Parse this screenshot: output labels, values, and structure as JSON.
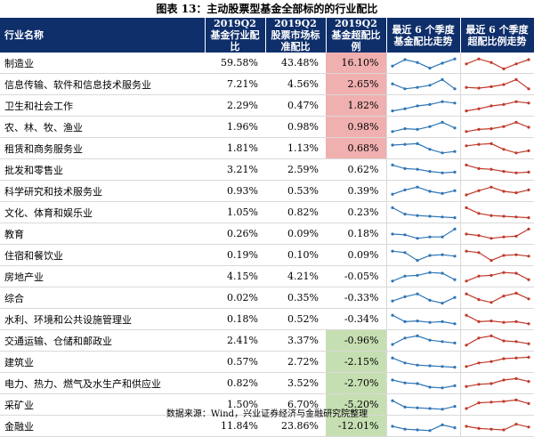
{
  "title": "图表 13：主动股票型基金全部标的的行业配比",
  "headers": {
    "industry": "行业名称",
    "fund": "2019Q2 基金行业配比",
    "market": "2019Q2 股票市场标准配比",
    "excess": "2019Q2 基金超配比例",
    "fund_trend": "最近 6 个季度基金配比走势",
    "excess_trend": "最近 6 个季度超配比例走势"
  },
  "colors": {
    "header_bg": "#0f2f6b",
    "positive_highlight": "#f0b0b0",
    "negative_highlight": "#c6dfb2",
    "fund_line": "#2e75b6",
    "excess_line": "#c0392b"
  },
  "rows": [
    {
      "name": "制造业",
      "fund": "59.58%",
      "market": "43.48%",
      "excess": "16.10%",
      "hl": "pos",
      "fund_trend": [
        0.3,
        0.75,
        0.55,
        0.15,
        0.5,
        0.8
      ],
      "excess_trend": [
        0.45,
        0.8,
        0.55,
        0.1,
        0.45,
        0.75
      ]
    },
    {
      "name": "信息传输、软件和信息技术服务业",
      "fund": "7.21%",
      "market": "4.56%",
      "excess": "2.65%",
      "hl": "pos",
      "fund_trend": [
        0.55,
        0.2,
        0.3,
        0.45,
        0.85,
        0.2
      ],
      "excess_trend": [
        0.3,
        0.25,
        0.35,
        0.5,
        0.85,
        0.2
      ]
    },
    {
      "name": "卫生和社会工作",
      "fund": "2.29%",
      "market": "0.47%",
      "excess": "1.82%",
      "hl": "pos",
      "fund_trend": [
        0.15,
        0.3,
        0.5,
        0.6,
        0.8,
        0.7
      ],
      "excess_trend": [
        0.15,
        0.3,
        0.5,
        0.6,
        0.8,
        0.7
      ]
    },
    {
      "name": "农、林、牧、渔业",
      "fund": "1.96%",
      "market": "0.98%",
      "excess": "0.98%",
      "hl": "pos",
      "fund_trend": [
        0.2,
        0.4,
        0.35,
        0.55,
        0.85,
        0.45
      ],
      "excess_trend": [
        0.2,
        0.35,
        0.4,
        0.55,
        0.85,
        0.5
      ]
    },
    {
      "name": "租赁和商务服务业",
      "fund": "1.81%",
      "market": "1.13%",
      "excess": "0.68%",
      "hl": "pos",
      "fund_trend": [
        0.75,
        0.8,
        0.85,
        0.45,
        0.2,
        0.3
      ],
      "excess_trend": [
        0.7,
        0.8,
        0.85,
        0.45,
        0.2,
        0.35
      ]
    },
    {
      "name": "批发和零售业",
      "fund": "3.21%",
      "market": "2.59%",
      "excess": "0.62%",
      "hl": "plain",
      "fund_trend": [
        0.85,
        0.6,
        0.55,
        0.4,
        0.3,
        0.35
      ],
      "excess_trend": [
        0.85,
        0.6,
        0.55,
        0.4,
        0.3,
        0.35
      ]
    },
    {
      "name": "科学研究和技术服务业",
      "fund": "0.93%",
      "market": "0.53%",
      "excess": "0.39%",
      "hl": "plain",
      "fund_trend": [
        0.3,
        0.6,
        0.8,
        0.5,
        0.35,
        0.55
      ],
      "excess_trend": [
        0.25,
        0.55,
        0.8,
        0.5,
        0.4,
        0.6
      ]
    },
    {
      "name": "文化、体育和娱乐业",
      "fund": "1.05%",
      "market": "0.82%",
      "excess": "0.23%",
      "hl": "plain",
      "fund_trend": [
        0.85,
        0.4,
        0.3,
        0.25,
        0.2,
        0.15
      ],
      "excess_trend": [
        0.85,
        0.45,
        0.3,
        0.25,
        0.2,
        0.15
      ]
    },
    {
      "name": "教育",
      "fund": "0.26%",
      "market": "0.09%",
      "excess": "0.18%",
      "hl": "plain",
      "fund_trend": [
        0.5,
        0.45,
        0.2,
        0.3,
        0.3,
        0.85
      ],
      "excess_trend": [
        0.5,
        0.4,
        0.2,
        0.3,
        0.35,
        0.85
      ]
    },
    {
      "name": "住宿和餐饮业",
      "fund": "0.19%",
      "market": "0.10%",
      "excess": "0.09%",
      "hl": "plain",
      "fund_trend": [
        0.8,
        0.7,
        0.15,
        0.5,
        0.55,
        0.45
      ],
      "excess_trend": [
        0.8,
        0.7,
        0.15,
        0.5,
        0.55,
        0.45
      ]
    },
    {
      "name": "房地产业",
      "fund": "4.15%",
      "market": "4.21%",
      "excess": "-0.05%",
      "hl": "plain",
      "fund_trend": [
        0.2,
        0.55,
        0.6,
        0.8,
        0.75,
        0.3
      ],
      "excess_trend": [
        0.2,
        0.55,
        0.6,
        0.8,
        0.75,
        0.3
      ]
    },
    {
      "name": "综合",
      "fund": "0.02%",
      "market": "0.35%",
      "excess": "-0.33%",
      "hl": "plain",
      "fund_trend": [
        0.3,
        0.6,
        0.8,
        0.35,
        0.15,
        0.55
      ],
      "excess_trend": [
        0.8,
        0.4,
        0.2,
        0.65,
        0.85,
        0.45
      ]
    },
    {
      "name": "水利、环境和公共设施管理业",
      "fund": "0.18%",
      "market": "0.52%",
      "excess": "-0.34%",
      "hl": "plain",
      "fund_trend": [
        0.8,
        0.35,
        0.4,
        0.3,
        0.35,
        0.2
      ],
      "excess_trend": [
        0.8,
        0.35,
        0.4,
        0.3,
        0.35,
        0.2
      ]
    },
    {
      "name": "交通运输、仓储和邮政业",
      "fund": "2.41%",
      "market": "3.37%",
      "excess": "-0.96%",
      "hl": "neg",
      "fund_trend": [
        0.25,
        0.7,
        0.85,
        0.55,
        0.45,
        0.35
      ],
      "excess_trend": [
        0.2,
        0.7,
        0.85,
        0.5,
        0.45,
        0.3
      ]
    },
    {
      "name": "建筑业",
      "fund": "0.57%",
      "market": "2.72%",
      "excess": "-2.15%",
      "hl": "neg",
      "fund_trend": [
        0.8,
        0.45,
        0.3,
        0.25,
        0.2,
        0.15
      ],
      "excess_trend": [
        0.2,
        0.45,
        0.55,
        0.75,
        0.8,
        0.85
      ]
    },
    {
      "name": "电力、热力、燃气及水生产和供应业",
      "fund": "0.82%",
      "market": "3.52%",
      "excess": "-2.70%",
      "hl": "neg",
      "fund_trend": [
        0.75,
        0.55,
        0.5,
        0.25,
        0.2,
        0.35
      ],
      "excess_trend": [
        0.3,
        0.45,
        0.5,
        0.75,
        0.85,
        0.65
      ]
    },
    {
      "name": "采矿业",
      "fund": "1.50%",
      "market": "6.70%",
      "excess": "-5.20%",
      "hl": "neg",
      "fund_trend": [
        0.8,
        0.35,
        0.3,
        0.25,
        0.2,
        0.4
      ],
      "excess_trend": [
        0.25,
        0.65,
        0.7,
        0.75,
        0.85,
        0.6
      ]
    },
    {
      "name": "金融业",
      "fund": "11.84%",
      "market": "23.86%",
      "excess": "-12.01%",
      "hl": "neg",
      "fund_trend": [
        0.5,
        0.3,
        0.25,
        0.2,
        0.6,
        0.4
      ],
      "excess_trend": [
        0.5,
        0.35,
        0.3,
        0.25,
        0.65,
        0.45
      ]
    }
  ],
  "source": "数据来源：Wind，兴业证券经济与金融研究院整理"
}
